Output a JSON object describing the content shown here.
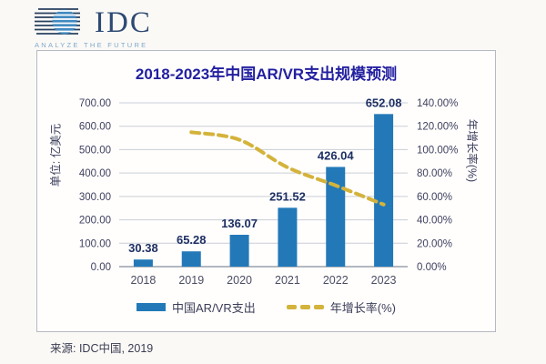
{
  "logo": {
    "brand": "IDC",
    "tagline": "ANALYZE THE FUTURE"
  },
  "chart": {
    "title": "2018-2023年中国AR/VR支出规模预测",
    "left_axis_title": "单位: 亿美元",
    "right_axis_title": "年增长率(%)",
    "legend": [
      {
        "label": "中国AR/VR支出",
        "type": "bar",
        "color": "#2379b8"
      },
      {
        "label": "年增长率(%)",
        "type": "dashed-line",
        "color": "#d4b33b"
      }
    ],
    "source": "来源: IDC中国, 2019"
  },
  "chart_data": {
    "type": "bar",
    "subtype": "bar+line-dual-axis",
    "title": "2018-2023年中国AR/VR支出规模预测",
    "categories": [
      "2018",
      "2019",
      "2020",
      "2021",
      "2022",
      "2023"
    ],
    "series": [
      {
        "name": "中国AR/VR支出",
        "type": "bar",
        "axis": "left",
        "values": [
          30.38,
          65.28,
          136.07,
          251.52,
          426.04,
          652.08
        ],
        "labels": [
          "30.38",
          "65.28",
          "136.07",
          "251.52",
          "426.04",
          "652.08"
        ],
        "color": "#2379b8"
      },
      {
        "name": "年增长率(%)",
        "type": "dashed-line",
        "axis": "right",
        "values": [
          null,
          114.86,
          108.44,
          84.85,
          69.39,
          53.06
        ],
        "color": "#d4b33b"
      }
    ],
    "left_axis": {
      "title": "单位: 亿美元",
      "min": 0,
      "max": 700,
      "ticks": [
        "700.00",
        "600.00",
        "500.00",
        "400.00",
        "300.00",
        "200.00",
        "100.00",
        "0.00"
      ]
    },
    "right_axis": {
      "title": "年增长率(%)",
      "min": 0,
      "max": 140,
      "ticks": [
        "140.00%",
        "120.00%",
        "100.00%",
        "80.00%",
        "60.00%",
        "40.00%",
        "20.00%",
        "0.00%"
      ]
    },
    "grid": true,
    "legend_position": "bottom",
    "grid_color": "#c9cdd6",
    "baseline_color": "#9aa1ad"
  },
  "colors": {
    "title": "#221fa0",
    "bar": "#2379b8",
    "line": "#d4b33b",
    "value_label": "#1d2f63",
    "tick_label": "#3f415f",
    "panel_border": "#b6b9c1",
    "background": "#fbf9f6",
    "logo_brand": "#2d4a73",
    "logo_tagline": "#7fa9cc",
    "logo_globe": "#4289bf"
  }
}
